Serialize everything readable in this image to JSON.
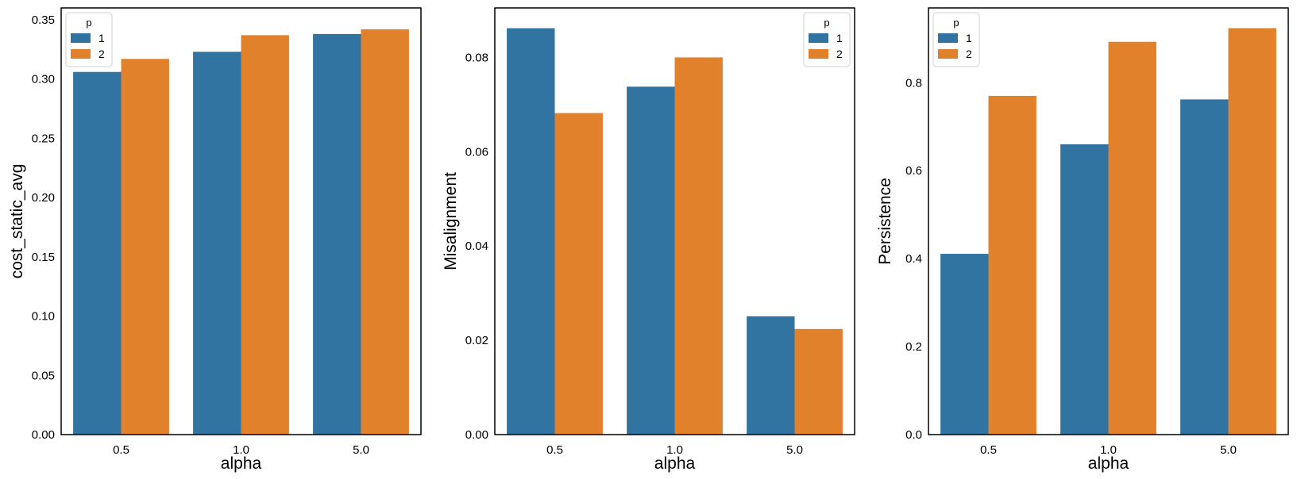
{
  "chart_data": [
    {
      "type": "bar",
      "categories": [
        "0.5",
        "1.0",
        "5.0"
      ],
      "xlabel": "alpha",
      "ylabel": "cost_static_avg",
      "ylim": [
        0,
        0.36
      ],
      "yticks": [
        "0.00",
        "0.05",
        "0.10",
        "0.15",
        "0.20",
        "0.25",
        "0.30",
        "0.35"
      ],
      "grid": false,
      "legend": {
        "title": "p",
        "placement": "top-left"
      },
      "series": [
        {
          "name": "1",
          "color": "#3274a1",
          "values": [
            0.306,
            0.323,
            0.338
          ]
        },
        {
          "name": "2",
          "color": "#e1812c",
          "values": [
            0.317,
            0.337,
            0.342
          ]
        }
      ]
    },
    {
      "type": "bar",
      "categories": [
        "0.5",
        "1.0",
        "5.0"
      ],
      "xlabel": "alpha",
      "ylabel": "Misalignment",
      "ylim": [
        0,
        0.0905
      ],
      "yticks": [
        "0.00",
        "0.02",
        "0.04",
        "0.06",
        "0.08"
      ],
      "grid": false,
      "legend": {
        "title": "p",
        "placement": "top-right"
      },
      "series": [
        {
          "name": "1",
          "color": "#3274a1",
          "values": [
            0.0862,
            0.0738,
            0.0251
          ]
        },
        {
          "name": "2",
          "color": "#e1812c",
          "values": [
            0.0682,
            0.08,
            0.0224
          ]
        }
      ]
    },
    {
      "type": "bar",
      "categories": [
        "0.5",
        "1.0",
        "5.0"
      ],
      "xlabel": "alpha",
      "ylabel": "Persistence",
      "ylim": [
        0,
        0.97
      ],
      "yticks": [
        "0.0",
        "0.2",
        "0.4",
        "0.6",
        "0.8"
      ],
      "grid": false,
      "legend": {
        "title": "p",
        "placement": "top-left"
      },
      "series": [
        {
          "name": "1",
          "color": "#3274a1",
          "values": [
            0.411,
            0.66,
            0.762
          ]
        },
        {
          "name": "2",
          "color": "#e1812c",
          "values": [
            0.77,
            0.893,
            0.924
          ]
        }
      ]
    }
  ]
}
